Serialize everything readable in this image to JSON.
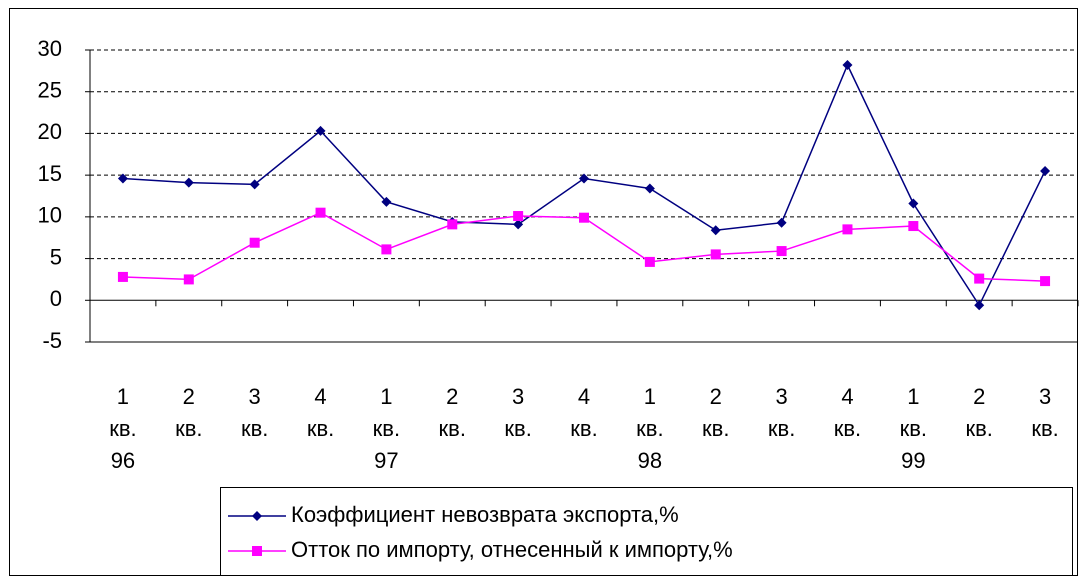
{
  "chart_data": {
    "type": "line",
    "categories": [
      "1 кв. 96",
      "2 кв.",
      "3 кв.",
      "4 кв.",
      "1 кв. 97",
      "2 кв.",
      "3 кв.",
      "4 кв.",
      "1 кв. 98",
      "2 кв.",
      "3 кв.",
      "4 кв.",
      "1 кв. 99",
      "2 кв.",
      "3 кв."
    ],
    "series": [
      {
        "name": "Коэффициент невозврата экспорта,%",
        "color": "#000080",
        "marker": "diamond",
        "values": [
          14.6,
          14.1,
          13.9,
          20.3,
          11.8,
          9.4,
          9.1,
          14.6,
          13.4,
          8.4,
          9.3,
          28.2,
          11.6,
          -0.6,
          15.5
        ]
      },
      {
        "name": "Отток по импорту, отнесенный к импорту,%",
        "color": "#ff00ff",
        "marker": "square",
        "values": [
          2.8,
          2.5,
          6.9,
          10.5,
          6.1,
          9.1,
          10.1,
          9.9,
          4.6,
          5.5,
          5.9,
          8.5,
          8.9,
          2.6,
          2.3
        ]
      }
    ],
    "ylim": [
      -5,
      30
    ],
    "yticks": [
      -5,
      0,
      5,
      10,
      15,
      20,
      25,
      30
    ],
    "grid": true
  }
}
